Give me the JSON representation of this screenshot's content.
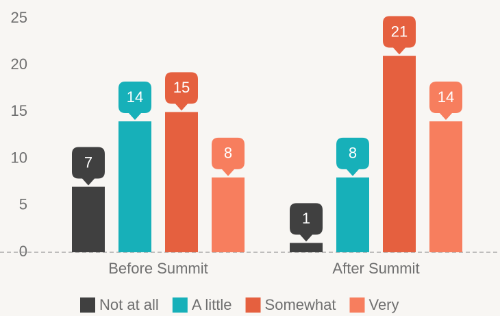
{
  "chart_data": {
    "type": "bar",
    "categories": [
      "Before Summit",
      "After Summit"
    ],
    "series": [
      {
        "name": "Not at all",
        "color": "#404040",
        "values": [
          7,
          1
        ]
      },
      {
        "name": "A little",
        "color": "#17b0b9",
        "values": [
          14,
          8
        ]
      },
      {
        "name": "Somewhat",
        "color": "#e5603f",
        "values": [
          15,
          21
        ]
      },
      {
        "name": "Very",
        "color": "#f77e5e",
        "values": [
          8,
          14
        ]
      }
    ],
    "ylim": [
      0,
      25
    ],
    "yticks": [
      0,
      5,
      10,
      15,
      20,
      25
    ],
    "grid": false,
    "legend": "bottom"
  }
}
